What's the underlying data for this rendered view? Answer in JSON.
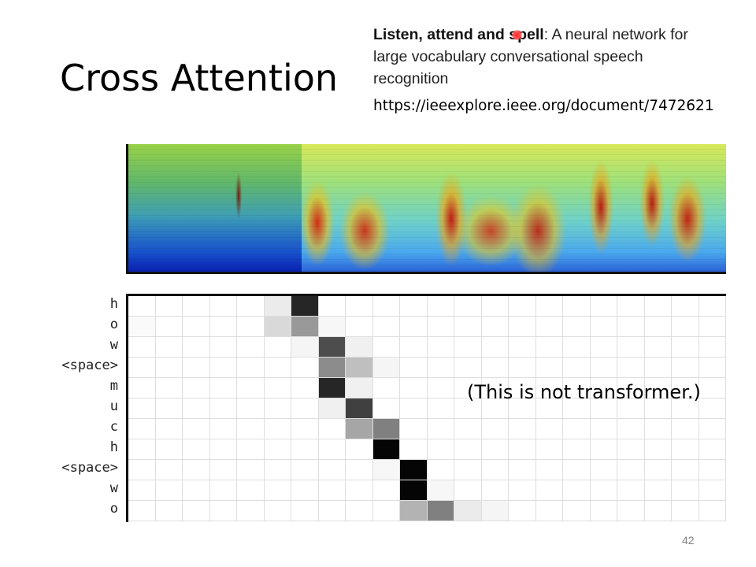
{
  "slide": {
    "title": "Cross Attention",
    "reference": {
      "title_bold_part1": "Listen, attend and s",
      "title_bold_part2": "pell",
      "title_rest": ": A neural network for large vocabulary conversational speech recognition",
      "url": "https://ieeexplore.ieee.org/document/7472621"
    },
    "note": "(This is not transformer.)",
    "page_number": "42"
  },
  "attention_matrix": {
    "rows": [
      "h",
      "o",
      "w",
      "<space>",
      "m",
      "u",
      "c",
      "h",
      "<space>",
      "w",
      "o"
    ],
    "columns": 22,
    "weights": [
      [
        0,
        0,
        0,
        0,
        0,
        0.08,
        0.85,
        0,
        0,
        0,
        0,
        0,
        0,
        0,
        0,
        0,
        0,
        0,
        0,
        0,
        0,
        0
      ],
      [
        0.02,
        0,
        0,
        0,
        0,
        0.15,
        0.4,
        0.03,
        0,
        0,
        0,
        0,
        0,
        0,
        0,
        0,
        0,
        0,
        0,
        0,
        0,
        0
      ],
      [
        0,
        0,
        0,
        0,
        0,
        0,
        0.04,
        0.7,
        0.06,
        0,
        0,
        0,
        0,
        0,
        0,
        0,
        0,
        0,
        0,
        0,
        0,
        0
      ],
      [
        0,
        0,
        0,
        0,
        0,
        0,
        0,
        0.45,
        0.25,
        0.04,
        0,
        0,
        0,
        0,
        0,
        0,
        0,
        0,
        0,
        0,
        0,
        0
      ],
      [
        0,
        0,
        0,
        0,
        0,
        0,
        0,
        0.85,
        0.06,
        0,
        0,
        0,
        0,
        0,
        0,
        0,
        0,
        0,
        0,
        0,
        0,
        0
      ],
      [
        0,
        0,
        0,
        0,
        0,
        0,
        0,
        0.06,
        0.75,
        0,
        0,
        0,
        0,
        0,
        0,
        0,
        0,
        0,
        0,
        0,
        0,
        0
      ],
      [
        0,
        0,
        0,
        0,
        0,
        0,
        0,
        0,
        0.35,
        0.5,
        0,
        0,
        0,
        0,
        0,
        0,
        0,
        0,
        0,
        0,
        0,
        0
      ],
      [
        0,
        0,
        0,
        0,
        0,
        0,
        0,
        0,
        0,
        0.98,
        0,
        0,
        0,
        0,
        0,
        0,
        0,
        0,
        0,
        0,
        0,
        0
      ],
      [
        0,
        0,
        0,
        0,
        0,
        0,
        0,
        0,
        0,
        0.03,
        0.98,
        0,
        0,
        0,
        0,
        0,
        0,
        0,
        0,
        0,
        0,
        0
      ],
      [
        0,
        0,
        0,
        0,
        0,
        0,
        0,
        0,
        0,
        0,
        0.98,
        0.03,
        0,
        0,
        0,
        0,
        0,
        0,
        0,
        0,
        0,
        0
      ],
      [
        0,
        0,
        0,
        0,
        0,
        0,
        0,
        0,
        0,
        0,
        0.3,
        0.5,
        0.08,
        0.04,
        0,
        0,
        0,
        0,
        0,
        0,
        0,
        0
      ]
    ]
  },
  "colors": {
    "laser_pointer": "#ff2b2b",
    "grid_line": "#dedede",
    "page_number": "#808080"
  }
}
